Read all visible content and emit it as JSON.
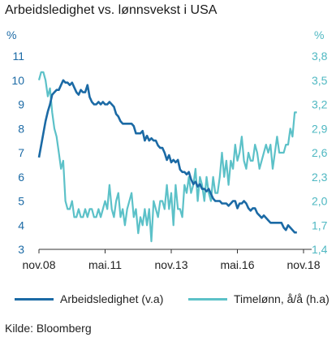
{
  "title": "Arbeidsledighet vs. lønnsvekst i USA",
  "source": "Kilde: Bloomberg",
  "colors": {
    "unemployment": "#1b6aa5",
    "wages": "#5cc1c8",
    "axis": "#333333"
  },
  "chart_data": {
    "type": "line",
    "title": "Arbeidsledighet vs. lønnsvekst i USA",
    "y_left": {
      "unit": "%",
      "range": [
        3,
        11
      ],
      "ticks": [
        "3",
        "4",
        "5",
        "6",
        "7",
        "8",
        "9",
        "10",
        "11"
      ]
    },
    "y_right": {
      "unit": "%",
      "range": [
        1.4,
        3.8
      ],
      "ticks": [
        "1,4",
        "1,7",
        "2,0",
        "2,3",
        "2,6",
        "2,9",
        "3,2",
        "3,5",
        "3,8"
      ]
    },
    "x_ticks": [
      {
        "label": "nov.08",
        "t": 0
      },
      {
        "label": "mai.11",
        "t": 30
      },
      {
        "label": "nov.13",
        "t": 60
      },
      {
        "label": "mai.16",
        "t": 90
      },
      {
        "label": "nov.18",
        "t": 120
      }
    ],
    "grid": false,
    "legend_position": "bottom",
    "series": [
      {
        "name": "Arbeidsledighet (v.a)",
        "axis": "left",
        "points": [
          [
            0,
            6.8
          ],
          [
            1,
            7.3
          ],
          [
            2,
            7.8
          ],
          [
            3,
            8.3
          ],
          [
            4,
            8.7
          ],
          [
            5,
            9.0
          ],
          [
            6,
            9.4
          ],
          [
            7,
            9.5
          ],
          [
            8,
            9.6
          ],
          [
            9,
            9.6
          ],
          [
            10,
            9.8
          ],
          [
            11,
            10.0
          ],
          [
            12,
            9.9
          ],
          [
            13,
            9.9
          ],
          [
            14,
            9.8
          ],
          [
            15,
            9.9
          ],
          [
            16,
            9.7
          ],
          [
            17,
            9.5
          ],
          [
            18,
            9.4
          ],
          [
            19,
            9.6
          ],
          [
            20,
            9.5
          ],
          [
            21,
            9.5
          ],
          [
            22,
            9.8
          ],
          [
            23,
            9.3
          ],
          [
            24,
            9.1
          ],
          [
            25,
            9.0
          ],
          [
            26,
            9.0
          ],
          [
            27,
            9.1
          ],
          [
            28,
            9.0
          ],
          [
            29,
            9.1
          ],
          [
            30,
            9.0
          ],
          [
            31,
            9.0
          ],
          [
            32,
            9.1
          ],
          [
            33,
            9.0
          ],
          [
            34,
            8.9
          ],
          [
            35,
            8.6
          ],
          [
            36,
            8.5
          ],
          [
            37,
            8.3
          ],
          [
            38,
            8.2
          ],
          [
            39,
            8.2
          ],
          [
            40,
            8.2
          ],
          [
            41,
            8.2
          ],
          [
            42,
            8.2
          ],
          [
            43,
            8.1
          ],
          [
            44,
            7.8
          ],
          [
            45,
            7.8
          ],
          [
            46,
            7.8
          ],
          [
            47,
            7.9
          ],
          [
            48,
            7.5
          ],
          [
            49,
            7.7
          ],
          [
            50,
            7.5
          ],
          [
            51,
            7.6
          ],
          [
            52,
            7.5
          ],
          [
            53,
            7.5
          ],
          [
            54,
            7.3
          ],
          [
            55,
            7.2
          ],
          [
            56,
            7.2
          ],
          [
            57,
            7.0
          ],
          [
            58,
            6.7
          ],
          [
            59,
            6.9
          ],
          [
            60,
            6.6
          ],
          [
            61,
            6.7
          ],
          [
            62,
            6.6
          ],
          [
            63,
            6.7
          ],
          [
            64,
            6.3
          ],
          [
            65,
            6.2
          ],
          [
            66,
            6.2
          ],
          [
            67,
            6.1
          ],
          [
            68,
            6.2
          ],
          [
            69,
            5.9
          ],
          [
            70,
            5.7
          ],
          [
            71,
            5.8
          ],
          [
            72,
            5.6
          ],
          [
            73,
            5.7
          ],
          [
            74,
            5.5
          ],
          [
            75,
            5.5
          ],
          [
            76,
            5.4
          ],
          [
            77,
            5.5
          ],
          [
            78,
            5.3
          ],
          [
            79,
            5.1
          ],
          [
            80,
            5.0
          ],
          [
            81,
            5.0
          ],
          [
            82,
            5.0
          ],
          [
            83,
            4.9
          ],
          [
            84,
            4.9
          ],
          [
            85,
            4.9
          ],
          [
            86,
            4.8
          ],
          [
            87,
            4.9
          ],
          [
            88,
            5.0
          ],
          [
            89,
            5.0
          ],
          [
            90,
            4.7
          ],
          [
            91,
            4.9
          ],
          [
            92,
            4.9
          ],
          [
            93,
            5.0
          ],
          [
            94,
            4.9
          ],
          [
            95,
            4.7
          ],
          [
            96,
            4.6
          ],
          [
            97,
            4.7
          ],
          [
            98,
            4.7
          ],
          [
            99,
            4.5
          ],
          [
            100,
            4.4
          ],
          [
            101,
            4.3
          ],
          [
            102,
            4.4
          ],
          [
            103,
            4.3
          ],
          [
            104,
            4.2
          ],
          [
            105,
            4.1
          ],
          [
            106,
            4.1
          ],
          [
            107,
            4.1
          ],
          [
            108,
            4.1
          ],
          [
            109,
            4.1
          ],
          [
            110,
            4.1
          ],
          [
            111,
            3.9
          ],
          [
            112,
            3.8
          ],
          [
            113,
            4.0
          ],
          [
            114,
            3.9
          ],
          [
            115,
            3.8
          ],
          [
            116,
            3.7
          ],
          [
            117,
            3.7
          ]
        ]
      },
      {
        "name": "Timelønn, å/å (h.a)",
        "axis": "right",
        "points": [
          [
            0,
            3.5
          ],
          [
            1,
            3.6
          ],
          [
            2,
            3.6
          ],
          [
            3,
            3.5
          ],
          [
            4,
            3.3
          ],
          [
            5,
            3.4
          ],
          [
            6,
            3.1
          ],
          [
            7,
            2.9
          ],
          [
            8,
            2.8
          ],
          [
            9,
            2.6
          ],
          [
            10,
            2.4
          ],
          [
            11,
            2.5
          ],
          [
            12,
            2.0
          ],
          [
            13,
            1.9
          ],
          [
            14,
            1.9
          ],
          [
            15,
            2.0
          ],
          [
            16,
            1.8
          ],
          [
            17,
            1.8
          ],
          [
            18,
            1.9
          ],
          [
            19,
            1.8
          ],
          [
            20,
            1.8
          ],
          [
            21,
            1.9
          ],
          [
            22,
            1.8
          ],
          [
            23,
            1.9
          ],
          [
            24,
            1.9
          ],
          [
            25,
            1.8
          ],
          [
            26,
            1.8
          ],
          [
            27,
            1.9
          ],
          [
            28,
            1.8
          ],
          [
            29,
            1.9
          ],
          [
            30,
            2.0
          ],
          [
            31,
            1.9
          ],
          [
            32,
            2.2
          ],
          [
            33,
            1.9
          ],
          [
            34,
            1.8
          ],
          [
            35,
            2.0
          ],
          [
            36,
            2.1
          ],
          [
            37,
            1.8
          ],
          [
            38,
            1.9
          ],
          [
            39,
            1.7
          ],
          [
            40,
            1.9
          ],
          [
            41,
            2.0
          ],
          [
            42,
            2.1
          ],
          [
            43,
            1.8
          ],
          [
            44,
            1.9
          ],
          [
            45,
            1.6
          ],
          [
            46,
            1.8
          ],
          [
            47,
            1.7
          ],
          [
            48,
            1.9
          ],
          [
            49,
            1.7
          ],
          [
            50,
            1.9
          ],
          [
            51,
            1.5
          ],
          [
            52,
            2.0
          ],
          [
            53,
            1.9
          ],
          [
            54,
            1.8
          ],
          [
            55,
            2.0
          ],
          [
            56,
            2.0
          ],
          [
            57,
            1.9
          ],
          [
            58,
            2.2
          ],
          [
            59,
            1.9
          ],
          [
            60,
            2.1
          ],
          [
            61,
            1.7
          ],
          [
            62,
            2.2
          ],
          [
            63,
            1.9
          ],
          [
            64,
            1.9
          ],
          [
            65,
            1.8
          ],
          [
            66,
            2.2
          ],
          [
            67,
            2.1
          ],
          [
            68,
            2.3
          ],
          [
            69,
            2.1
          ],
          [
            70,
            2.2
          ],
          [
            71,
            2.4
          ],
          [
            72,
            2.0
          ],
          [
            73,
            2.3
          ],
          [
            74,
            2.2
          ],
          [
            75,
            2.0
          ],
          [
            76,
            2.3
          ],
          [
            77,
            2.1
          ],
          [
            78,
            2.0
          ],
          [
            79,
            2.3
          ],
          [
            80,
            2.1
          ],
          [
            81,
            2.1
          ],
          [
            82,
            2.3
          ],
          [
            83,
            2.6
          ],
          [
            84,
            2.3
          ],
          [
            85,
            2.5
          ],
          [
            86,
            2.2
          ],
          [
            87,
            2.5
          ],
          [
            88,
            2.4
          ],
          [
            89,
            2.7
          ],
          [
            90,
            2.5
          ],
          [
            91,
            2.6
          ],
          [
            92,
            2.8
          ],
          [
            93,
            2.5
          ],
          [
            94,
            2.4
          ],
          [
            95,
            2.6
          ],
          [
            96,
            2.5
          ],
          [
            97,
            2.5
          ],
          [
            98,
            2.7
          ],
          [
            99,
            2.6
          ],
          [
            100,
            2.4
          ],
          [
            101,
            2.5
          ],
          [
            102,
            2.6
          ],
          [
            103,
            2.7
          ],
          [
            104,
            2.6
          ],
          [
            105,
            2.7
          ],
          [
            106,
            2.4
          ],
          [
            107,
            2.6
          ],
          [
            108,
            2.8
          ],
          [
            109,
            2.6
          ],
          [
            110,
            2.6
          ],
          [
            111,
            2.6
          ],
          [
            112,
            2.7
          ],
          [
            113,
            2.7
          ],
          [
            114,
            2.9
          ],
          [
            115,
            2.8
          ],
          [
            116,
            3.1
          ],
          [
            117,
            3.1
          ]
        ]
      }
    ]
  }
}
